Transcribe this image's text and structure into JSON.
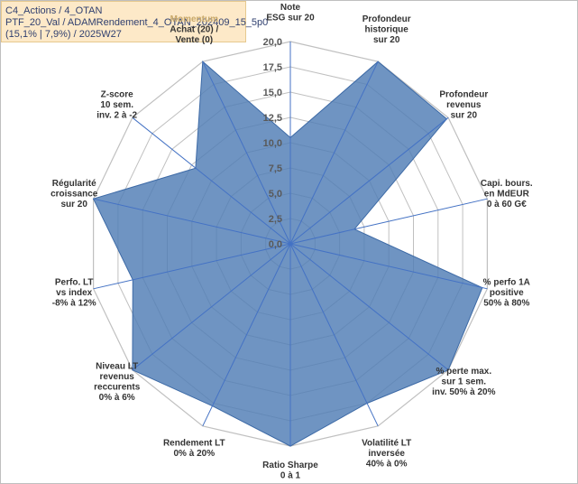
{
  "title_lines": [
    "C4_Actions / 4_OTAN",
    "PTF_20_Val / ADAMRendement_4_OTAN_202409_15_5p0",
    "(15,1% | 7,9%) / 2025W27"
  ],
  "colors": {
    "fill": "#4f7cb5",
    "grid": "#c0c0c0",
    "spoke": "#4472c4",
    "title_bg": "#fde9c8"
  },
  "chart_data": {
    "type": "radar",
    "rmax": 20,
    "ticks": [
      "0,0",
      "2,5",
      "5,0",
      "7,5",
      "10,0",
      "12,5",
      "15,0",
      "17,5",
      "20,0"
    ],
    "axes": [
      {
        "lines": [
          "Note",
          "ESG sur 20"
        ]
      },
      {
        "lines": [
          "Profondeur",
          "historique",
          "sur 20"
        ]
      },
      {
        "lines": [
          "Profondeur",
          "revenus",
          "sur 20"
        ]
      },
      {
        "lines": [
          "Capi. bours.",
          "en MdEUR",
          "0 à 60 G€"
        ]
      },
      {
        "lines": [
          "% perfo 1A",
          "positive",
          "50% à 80%"
        ]
      },
      {
        "lines": [
          "% perte max.",
          "sur 1 sem.",
          "inv. 50% à 20%"
        ]
      },
      {
        "lines": [
          "Volatilité LT",
          "inversée",
          "40% à 0%"
        ]
      },
      {
        "lines": [
          "Ratio Sharpe",
          "0 à 1"
        ]
      },
      {
        "lines": [
          "Rendement LT",
          "0% à 20%"
        ]
      },
      {
        "lines": [
          "Niveau LT",
          "revenus",
          "reccurents",
          "0% à 6%"
        ]
      },
      {
        "lines": [
          "Perfo. LT",
          "vs index",
          "-8% à 12%"
        ]
      },
      {
        "lines": [
          "Régularité",
          "croissance",
          "sur 20"
        ]
      },
      {
        "lines": [
          "Z-score",
          "10 sem.",
          "inv. 2 à -2"
        ]
      },
      {
        "lines": [
          "Momentum",
          "Achat (20) /",
          "Vente (0)"
        ]
      }
    ],
    "values": [
      10.5,
      20,
      19.8,
      6.5,
      19.5,
      20,
      17.5,
      20,
      17.8,
      20,
      16,
      20,
      12,
      20
    ],
    "series_color": "#4f7cb5"
  }
}
